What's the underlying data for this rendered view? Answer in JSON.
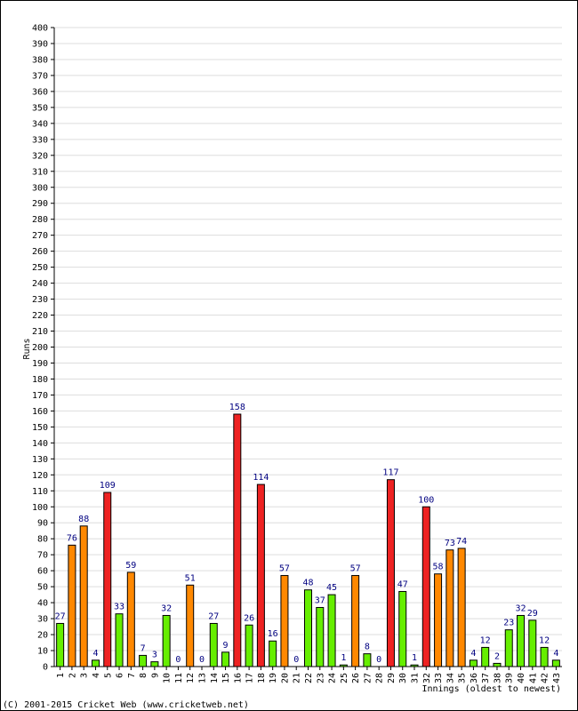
{
  "chart_data": {
    "type": "bar",
    "ylabel": "Runs",
    "xlabel": "Innings (oldest to newest)",
    "ylim": [
      0,
      400
    ],
    "ystep": 10,
    "grid": true,
    "categories": [
      "1",
      "2",
      "3",
      "4",
      "5",
      "6",
      "7",
      "8",
      "9",
      "10",
      "11",
      "12",
      "13",
      "14",
      "15",
      "16",
      "17",
      "18",
      "19",
      "20",
      "21",
      "22",
      "23",
      "24",
      "25",
      "26",
      "27",
      "28",
      "29",
      "30",
      "31",
      "32",
      "33",
      "34",
      "35",
      "36",
      "37",
      "38",
      "39",
      "40",
      "41",
      "42",
      "43"
    ],
    "values": [
      27,
      76,
      88,
      4,
      109,
      33,
      59,
      7,
      3,
      32,
      0,
      51,
      0,
      27,
      9,
      158,
      26,
      114,
      16,
      57,
      0,
      48,
      37,
      45,
      1,
      57,
      8,
      0,
      117,
      47,
      1,
      100,
      58,
      73,
      74,
      4,
      12,
      2,
      23,
      32,
      29,
      12,
      4
    ],
    "color_rule": {
      "below_50": "#66ee00",
      "50_to_99": "#ff8800",
      "100_plus": "#ee2222"
    }
  },
  "footer": {
    "copyright": "(C) 2001-2015 Cricket Web (www.cricketweb.net)"
  }
}
